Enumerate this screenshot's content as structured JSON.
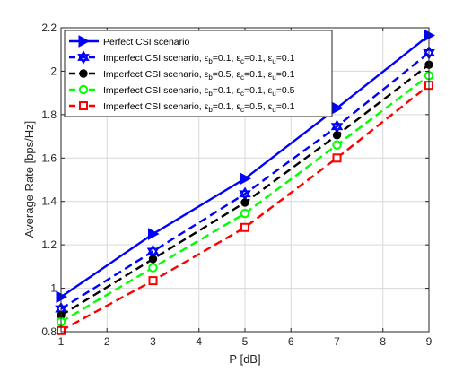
{
  "chart_data": {
    "type": "line",
    "xlabel": "P [dB]",
    "ylabel": "Average Rate [bps/Hz]",
    "xlim": [
      1,
      9
    ],
    "ylim": [
      0.8,
      2.2
    ],
    "xticks": [
      "1",
      "2",
      "3",
      "4",
      "5",
      "6",
      "7",
      "8",
      "9"
    ],
    "yticks": [
      "0.8",
      "1",
      "1.2",
      "1.4",
      "1.6",
      "1.8",
      "2",
      "2.2"
    ],
    "grid": true,
    "legend_position": "top-left",
    "x": [
      1,
      3,
      5,
      7,
      9
    ],
    "series": [
      {
        "name": "Perfect CSI scenario",
        "legend": {
          "prefix": "Perfect CSI scenario",
          "parts": []
        },
        "values": [
          0.96,
          1.25,
          1.505,
          1.83,
          2.165
        ],
        "color": "#0000ff",
        "marker": "triangle-right",
        "dash": "solid"
      },
      {
        "name": "Imperfect CSI scenario, εb=0.1, εc=0.1, εu=0.1",
        "legend": {
          "prefix": "Imperfect CSI scenario, ",
          "parts": [
            [
              "b",
              "=0.1, "
            ],
            [
              "c",
              "=0.1, "
            ],
            [
              "u",
              "=0.1"
            ]
          ]
        },
        "values": [
          0.905,
          1.17,
          1.435,
          1.745,
          2.085
        ],
        "color": "#0000ff",
        "marker": "hexagram",
        "dash": "dashed"
      },
      {
        "name": "Imperfect CSI scenario, εb=0.5, εc=0.1, εu=0.1",
        "legend": {
          "prefix": "Imperfect CSI scenario, ",
          "parts": [
            [
              "b",
              "=0.5, "
            ],
            [
              "c",
              "=0.1, "
            ],
            [
              "u",
              "=0.1"
            ]
          ]
        },
        "values": [
          0.875,
          1.135,
          1.395,
          1.705,
          2.03
        ],
        "color": "#000000",
        "marker": "circle-filled",
        "dash": "dashed"
      },
      {
        "name": "Imperfect CSI scenario, εb=0.1, εc=0.1, εu=0.5",
        "legend": {
          "prefix": "Imperfect CSI scenario, ",
          "parts": [
            [
              "b",
              "=0.1, "
            ],
            [
              "c",
              "=0.1, "
            ],
            [
              "u",
              "=0.5"
            ]
          ]
        },
        "values": [
          0.845,
          1.095,
          1.345,
          1.66,
          1.98
        ],
        "color": "#00ff00",
        "marker": "circle-open",
        "dash": "dashed"
      },
      {
        "name": "Imperfect CSI scenario, εb=0.1, εc=0.5, εu=0.1",
        "legend": {
          "prefix": "Imperfect CSI scenario, ",
          "parts": [
            [
              "b",
              "=0.1, "
            ],
            [
              "c",
              "=0.5, "
            ],
            [
              "u",
              "=0.1"
            ]
          ]
        },
        "values": [
          0.805,
          1.035,
          1.28,
          1.6,
          1.935
        ],
        "color": "#ff0000",
        "marker": "square-open",
        "dash": "dashed"
      }
    ]
  }
}
